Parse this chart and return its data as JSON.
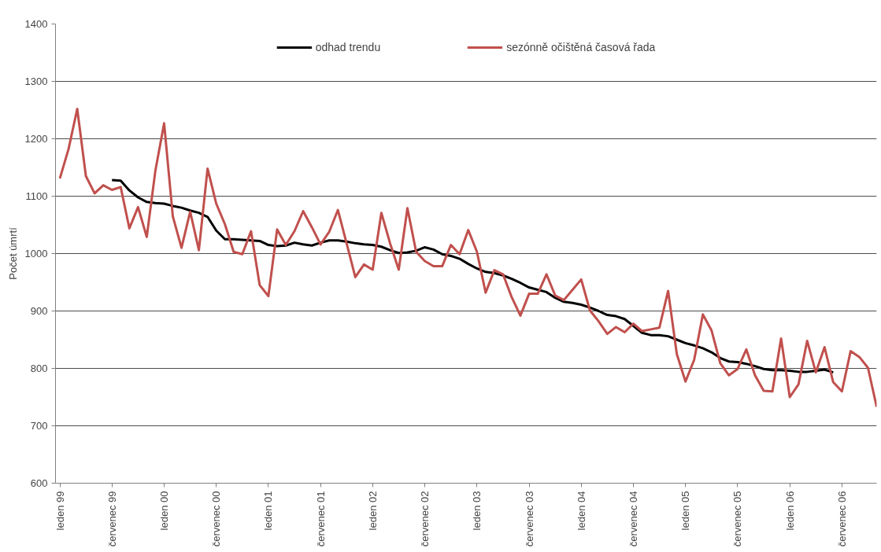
{
  "chart_data": {
    "type": "line",
    "ylabel": "Počet úmrtí",
    "categories": [
      "leden 99",
      null,
      null,
      null,
      null,
      null,
      "červenec 99",
      null,
      null,
      null,
      null,
      null,
      "leden 00",
      null,
      null,
      null,
      null,
      null,
      "červenec 00",
      null,
      null,
      null,
      null,
      null,
      "leden 01",
      null,
      null,
      null,
      null,
      null,
      "červenec 01",
      null,
      null,
      null,
      null,
      null,
      "leden 02",
      null,
      null,
      null,
      null,
      null,
      "červenec 02",
      null,
      null,
      null,
      null,
      null,
      "leden 03",
      null,
      null,
      null,
      null,
      null,
      "červenec 03",
      null,
      null,
      null,
      null,
      null,
      "leden 04",
      null,
      null,
      null,
      null,
      null,
      "červenec 04",
      null,
      null,
      null,
      null,
      null,
      "leden 05",
      null,
      null,
      null,
      null,
      null,
      "červenec 05",
      null,
      null,
      null,
      null,
      null,
      "leden 06",
      null,
      null,
      null,
      null,
      null,
      "červenec 06",
      null,
      null,
      null,
      null
    ],
    "ylim": [
      600,
      1400
    ],
    "yticks": [
      600,
      700,
      800,
      900,
      1000,
      1100,
      1200,
      1300,
      1400
    ],
    "grid": "y",
    "legend": "top",
    "line_style": "solid",
    "marker": "none",
    "series": [
      {
        "name": "odhad trendu",
        "color": "#000000",
        "values": [
          null,
          null,
          null,
          null,
          null,
          null,
          1128,
          1127,
          1110,
          1098,
          1090,
          1088,
          1087,
          1083,
          1080,
          1075,
          1071,
          1064,
          1040,
          1025,
          1025,
          1024,
          1023,
          1022,
          1015,
          1013,
          1014,
          1019,
          1016,
          1014,
          1019,
          1023,
          1023,
          1021,
          1018,
          1016,
          1015,
          1012,
          1006,
          1001,
          1002,
          1005,
          1011,
          1007,
          999,
          996,
          991,
          982,
          974,
          968,
          966,
          962,
          956,
          949,
          941,
          937,
          933,
          923,
          916,
          914,
          911,
          906,
          900,
          893,
          891,
          886,
          874,
          862,
          858,
          858,
          856,
          850,
          844,
          840,
          835,
          828,
          818,
          812,
          811,
          808,
          804,
          799,
          797,
          797,
          796,
          794,
          794,
          796,
          798,
          793,
          null,
          null,
          null,
          null,
          null
        ]
      },
      {
        "name": "sezónně očištěná časová řada",
        "color": "#c0504d",
        "values": [
          1131,
          1182,
          1252,
          1135,
          1105,
          1119,
          1111,
          1116,
          1044,
          1081,
          1029,
          1145,
          1227,
          1065,
          1010,
          1073,
          1006,
          1148,
          1087,
          1051,
          1003,
          999,
          1039,
          945,
          926,
          1042,
          1015,
          1039,
          1074,
          1046,
          1016,
          1038,
          1076,
          1018,
          959,
          981,
          972,
          1071,
          1018,
          972,
          1079,
          1003,
          987,
          978,
          978,
          1015,
          999,
          1041,
          1003,
          932,
          971,
          964,
          924,
          892,
          930,
          930,
          964,
          927,
          919,
          937,
          955,
          901,
          882,
          860,
          872,
          863,
          878,
          865,
          868,
          871,
          935,
          825,
          777,
          815,
          894,
          866,
          809,
          788,
          799,
          833,
          788,
          761,
          760,
          852,
          750,
          772,
          848,
          793,
          837,
          776,
          760,
          830,
          820,
          801,
          733
        ]
      }
    ]
  }
}
